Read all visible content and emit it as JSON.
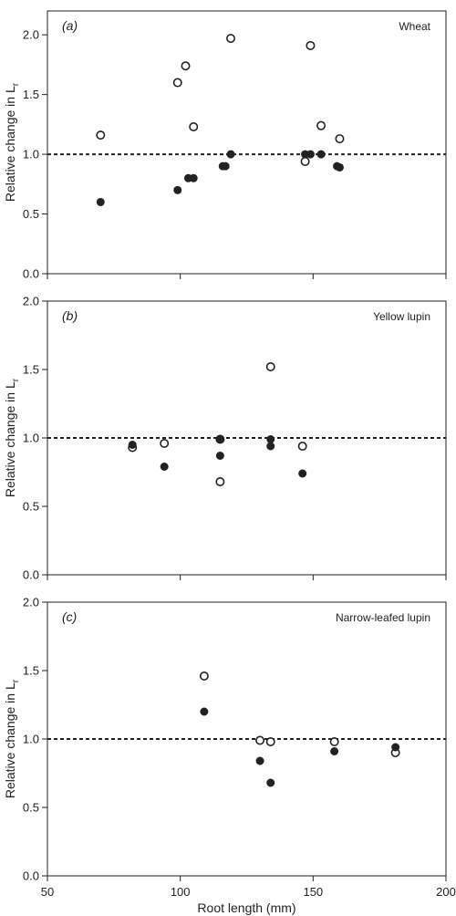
{
  "chart_data": [
    {
      "type": "scatter",
      "panel_label": "(a)",
      "title": "Wheat",
      "xlabel": "",
      "ylabel": "Relative change in L",
      "ylabel_sub": "r",
      "xlim": [
        50,
        200
      ],
      "ylim": [
        0.0,
        2.2
      ],
      "yticks": [
        "0.0",
        "0.5",
        "1.0",
        "1.5",
        "2.0"
      ],
      "xticks": [
        "50",
        "100",
        "150",
        "200"
      ],
      "show_xtick_labels": false,
      "reference_line": 1.0,
      "series": [
        {
          "marker": "open",
          "points": [
            [
              70,
              1.16
            ],
            [
              99,
              1.6
            ],
            [
              102,
              1.74
            ],
            [
              105,
              1.23
            ],
            [
              119,
              1.97
            ],
            [
              147,
              0.94
            ],
            [
              149,
              1.91
            ],
            [
              153,
              1.24
            ],
            [
              160,
              1.13
            ]
          ]
        },
        {
          "marker": "filled",
          "points": [
            [
              70,
              0.6
            ],
            [
              99,
              0.7
            ],
            [
              103,
              0.8
            ],
            [
              105,
              0.8
            ],
            [
              116,
              0.9
            ],
            [
              117,
              0.9
            ],
            [
              119,
              1.0
            ],
            [
              147,
              1.0
            ],
            [
              149,
              1.0
            ],
            [
              153,
              1.0
            ],
            [
              159,
              0.9
            ],
            [
              160,
              0.89
            ]
          ]
        }
      ]
    },
    {
      "type": "scatter",
      "panel_label": "(b)",
      "title": "Yellow lupin",
      "xlabel": "",
      "ylabel": "Relative change in L",
      "ylabel_sub": "r",
      "xlim": [
        50,
        200
      ],
      "ylim": [
        0.0,
        2.0
      ],
      "yticks": [
        "0.0",
        "0.5",
        "1.0",
        "1.5",
        "2.0"
      ],
      "xticks": [
        "50",
        "100",
        "150",
        "200"
      ],
      "show_xtick_labels": false,
      "reference_line": 1.0,
      "series": [
        {
          "marker": "open",
          "points": [
            [
              82,
              0.93
            ],
            [
              94,
              0.96
            ],
            [
              115,
              0.68
            ],
            [
              115,
              0.99
            ],
            [
              134,
              1.52
            ],
            [
              146,
              0.94
            ]
          ]
        },
        {
          "marker": "filled",
          "points": [
            [
              82,
              0.95
            ],
            [
              94,
              0.79
            ],
            [
              115,
              0.87
            ],
            [
              115,
              0.99
            ],
            [
              134,
              0.94
            ],
            [
              134,
              0.99
            ],
            [
              146,
              0.74
            ]
          ]
        }
      ]
    },
    {
      "type": "scatter",
      "panel_label": "(c)",
      "title": "Narrow-leafed lupin",
      "xlabel": "Root length (mm)",
      "ylabel": "Relative change in L",
      "ylabel_sub": "r",
      "xlim": [
        50,
        200
      ],
      "ylim": [
        0.0,
        2.0
      ],
      "yticks": [
        "0.0",
        "0.5",
        "1.0",
        "1.5",
        "2.0"
      ],
      "xticks": [
        "50",
        "100",
        "150",
        "200"
      ],
      "show_xtick_labels": true,
      "reference_line": 1.0,
      "series": [
        {
          "marker": "open",
          "points": [
            [
              109,
              1.46
            ],
            [
              130,
              0.99
            ],
            [
              134,
              0.98
            ],
            [
              158,
              0.98
            ],
            [
              181,
              0.9
            ]
          ]
        },
        {
          "marker": "filled",
          "points": [
            [
              109,
              1.2
            ],
            [
              130,
              0.84
            ],
            [
              134,
              0.68
            ],
            [
              158,
              0.91
            ],
            [
              181,
              0.94
            ]
          ]
        }
      ]
    }
  ]
}
